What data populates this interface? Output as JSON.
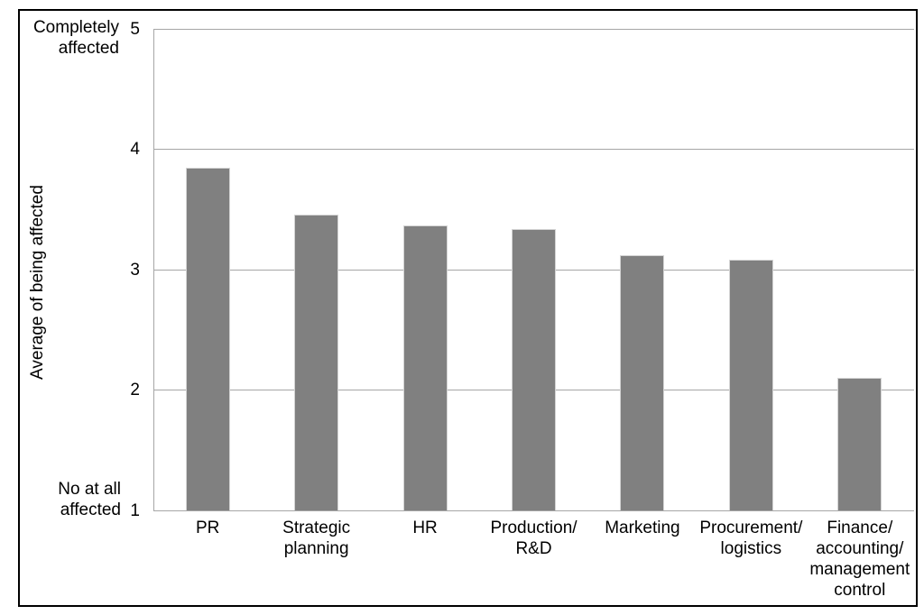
{
  "chart_data": {
    "type": "bar",
    "title": "",
    "categories": [
      "PR",
      "Strategic\nplanning",
      "HR",
      "Production/\nR&D",
      "Marketing",
      "Procurement/\nlogistics",
      "Finance/\naccounting/\nmanagement\ncontrol"
    ],
    "values": [
      3.85,
      3.46,
      3.37,
      3.34,
      3.12,
      3.08,
      2.1
    ],
    "xlabel": "",
    "ylabel": "Average of being affected",
    "ylim": [
      1,
      5
    ],
    "yticks": [
      5,
      4,
      3,
      2,
      1
    ],
    "y_axis_annotations": {
      "top": "Completely\naffected",
      "bottom": "No at all\naffected"
    },
    "grid": true,
    "legend": false,
    "bar_color": "#808080",
    "bar_border_color": "#d4d4d4",
    "gridline_color": "#a6a6a6",
    "frame_color": "#000000",
    "text_color": "#000000"
  }
}
